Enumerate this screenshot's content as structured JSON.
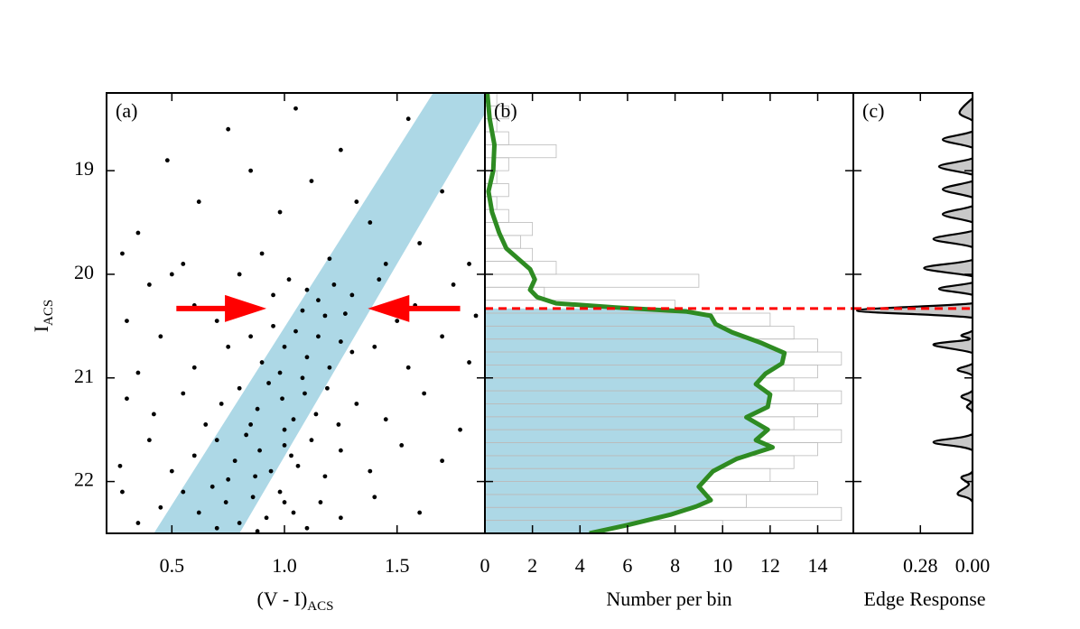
{
  "chart_data": [
    {
      "type": "scatter",
      "label": "(a)",
      "xlabel": {
        "text": "(V - I)",
        "sub": "ACS"
      },
      "ylabel": {
        "text": "I",
        "sub": "ACS"
      },
      "xlim": [
        0.21,
        1.89
      ],
      "ylim": [
        22.5,
        18.25
      ],
      "xticks": [
        0.5,
        {
          "value": 1,
          "label": "1.0"
        },
        1.5
      ],
      "yticks": [
        19,
        20,
        21,
        22
      ],
      "ytick_labels": true,
      "color": "#000000",
      "band_color": "#add8e6",
      "arrow_color": "#ff0000",
      "band": [
        [
          0.42,
          22.5
        ],
        [
          0.8,
          22.5
        ],
        [
          1.89,
          18.45
        ],
        [
          1.89,
          18.25
        ],
        [
          1.66,
          18.25
        ]
      ],
      "arrow_y": 20.33,
      "arrows": [
        {
          "from": 0.52,
          "to": 0.92
        },
        {
          "from": 1.78,
          "to": 1.37
        }
      ],
      "x": [
        0.35,
        0.48,
        0.62,
        0.75,
        0.9,
        1.05,
        1.12,
        1.25,
        1.38,
        1.55,
        1.7,
        1.82,
        1.6,
        1.45,
        1.32,
        0.98,
        0.85,
        0.55,
        0.28,
        1.2,
        0.4,
        0.6,
        0.8,
        0.95,
        1.02,
        1.15,
        1.22,
        1.3,
        1.42,
        1.58,
        1.75,
        1.85,
        0.3,
        0.5,
        1.08,
        1.18,
        1.27,
        1.1,
        0.7,
        1.5,
        0.85,
        0.95,
        1.0,
        1.05,
        1.1,
        1.15,
        1.2,
        1.25,
        1.3,
        0.9,
        0.75,
        0.6,
        0.45,
        0.35,
        1.4,
        1.55,
        1.7,
        1.82,
        0.98,
        1.08,
        0.8,
        0.88,
        0.93,
        0.99,
        1.04,
        1.09,
        1.14,
        1.19,
        1.24,
        0.72,
        0.65,
        0.55,
        0.42,
        0.3,
        1.32,
        1.45,
        1.62,
        1.78,
        0.85,
        1.0,
        0.7,
        0.78,
        0.83,
        0.89,
        0.94,
        1.0,
        1.06,
        1.12,
        1.18,
        0.6,
        0.5,
        0.4,
        0.27,
        1.25,
        1.38,
        1.52,
        1.7,
        0.75,
        0.87,
        1.03,
        0.55,
        0.62,
        0.68,
        0.74,
        0.8,
        0.86,
        0.92,
        0.98,
        1.04,
        1.1,
        0.45,
        0.35,
        0.28,
        1.16,
        1.25,
        1.4,
        1.6,
        0.7,
        0.88,
        1.0
      ],
      "values": [
        19.6,
        18.9,
        19.3,
        18.6,
        19.8,
        18.4,
        19.1,
        18.8,
        19.5,
        18.5,
        19.2,
        19.9,
        19.7,
        19.9,
        19.3,
        19.4,
        19.0,
        19.9,
        19.8,
        19.85,
        20.1,
        20.3,
        20.0,
        20.2,
        20.05,
        20.25,
        20.1,
        20.2,
        20.05,
        20.3,
        20.1,
        20.4,
        20.45,
        20.0,
        20.35,
        20.4,
        20.38,
        20.15,
        20.45,
        20.45,
        20.6,
        20.5,
        20.7,
        20.55,
        20.8,
        20.6,
        20.9,
        20.65,
        20.75,
        20.85,
        20.7,
        20.9,
        20.6,
        20.95,
        20.7,
        20.9,
        20.6,
        20.85,
        20.95,
        21.0,
        21.1,
        21.3,
        21.05,
        21.2,
        21.4,
        21.15,
        21.35,
        21.1,
        21.45,
        21.25,
        21.45,
        21.15,
        21.35,
        21.2,
        21.25,
        21.4,
        21.15,
        21.5,
        21.45,
        21.5,
        21.6,
        21.8,
        21.55,
        21.7,
        21.9,
        21.65,
        21.85,
        21.6,
        21.95,
        21.75,
        21.9,
        21.6,
        21.85,
        21.7,
        21.9,
        21.65,
        21.8,
        21.98,
        21.95,
        21.75,
        22.1,
        22.3,
        22.05,
        22.2,
        22.4,
        22.15,
        22.35,
        22.1,
        22.3,
        22.45,
        22.25,
        22.4,
        22.1,
        22.2,
        22.35,
        22.15,
        22.3,
        22.45,
        22.48,
        22.2
      ]
    },
    {
      "type": "histogram",
      "label": "(b)",
      "xlabel": "Number per bin",
      "xlim": [
        0,
        15.5
      ],
      "ylim": [
        22.5,
        18.25
      ],
      "xticks": [
        0,
        2,
        4,
        6,
        8,
        10,
        12,
        14
      ],
      "yticks": [
        19,
        20,
        21,
        22
      ],
      "ytick_labels": false,
      "trgb": 20.33,
      "trgb_color": "#ff0000",
      "bins": [
        18.25,
        18.375,
        18.5,
        18.625,
        18.75,
        18.875,
        19,
        19.125,
        19.25,
        19.375,
        19.5,
        19.625,
        19.75,
        19.875,
        20,
        20.125,
        20.25,
        20.375,
        20.5,
        20.625,
        20.75,
        20.875,
        21,
        21.125,
        21.25,
        21.375,
        21.5,
        21.625,
        21.75,
        21.875,
        22,
        22.125,
        22.25,
        22.375,
        22.5
      ],
      "counts": [
        0.5,
        1,
        0.5,
        1,
        3,
        1,
        0.5,
        1,
        0.5,
        1,
        2,
        1.5,
        2,
        3,
        9,
        2.5,
        8,
        12,
        13,
        14,
        15,
        14,
        13,
        15,
        14,
        13,
        15,
        14,
        13,
        12,
        14,
        11,
        15,
        10
      ],
      "hist_color": "#bbbbbb",
      "fill_color": "#add8e6",
      "series": [
        {
          "color": "#2e8b22",
          "y": [
            18.25,
            18.5,
            18.75,
            19.0,
            19.2,
            19.4,
            19.6,
            19.75,
            19.85,
            19.95,
            20.05,
            20.15,
            20.22,
            20.28,
            20.32,
            20.36,
            20.4,
            20.48,
            20.56,
            20.66,
            20.76,
            20.86,
            20.96,
            21.06,
            21.16,
            21.28,
            21.38,
            21.5,
            21.6,
            21.67,
            21.78,
            21.9,
            22.05,
            22.18,
            22.24,
            22.32,
            22.42,
            22.5
          ],
          "values": [
            0.1,
            0.2,
            0.4,
            0.35,
            0.15,
            0.3,
            0.6,
            0.9,
            1.4,
            1.9,
            2.1,
            1.9,
            2.2,
            3.0,
            5.5,
            8.5,
            9.5,
            9.7,
            10.4,
            11.6,
            12.6,
            12.5,
            11.8,
            11.4,
            12.0,
            11.9,
            11.0,
            11.9,
            11.4,
            12.1,
            10.6,
            9.6,
            9.0,
            9.5,
            8.9,
            7.8,
            6.0,
            4.4
          ]
        }
      ]
    },
    {
      "type": "area",
      "label": "(c)",
      "xlabel": "Edge Response",
      "xlim": [
        0.64,
        0
      ],
      "ylim": [
        22.5,
        18.25
      ],
      "xticks": [
        0.28,
        {
          "value": 0,
          "label": "0.00"
        }
      ],
      "yticks": [
        19,
        20,
        21,
        22
      ],
      "ytick_labels": false,
      "trgb": 20.33,
      "trgb_color": "#ff0000",
      "color": "#c8c8c8",
      "y": [
        18.3,
        18.44,
        18.52,
        18.62,
        18.7,
        18.78,
        18.88,
        18.96,
        19.04,
        19.1,
        19.18,
        19.26,
        19.34,
        19.42,
        19.5,
        19.58,
        19.66,
        19.74,
        19.86,
        19.94,
        20.02,
        20.08,
        20.14,
        20.2,
        20.28,
        20.35,
        20.42,
        20.54,
        20.59,
        20.63,
        20.68,
        20.76,
        20.86,
        20.92,
        20.98,
        21.12,
        21.18,
        21.23,
        21.28,
        21.34,
        21.54,
        21.62,
        21.7,
        21.9,
        21.96,
        22.03,
        22.12,
        22.2,
        22.5
      ],
      "values": [
        0,
        0.07,
        0,
        0,
        0.16,
        0,
        0,
        0.18,
        0,
        0,
        0.16,
        0,
        0,
        0.16,
        0,
        0,
        0.21,
        0,
        0,
        0.26,
        0,
        0,
        0.18,
        0,
        0,
        0.62,
        0,
        0,
        0.06,
        0.02,
        0.21,
        0,
        0,
        0.08,
        0,
        0,
        0.06,
        0.01,
        0.03,
        0,
        0,
        0.21,
        0,
        0,
        0.06,
        0.02,
        0.08,
        0,
        0
      ]
    }
  ]
}
